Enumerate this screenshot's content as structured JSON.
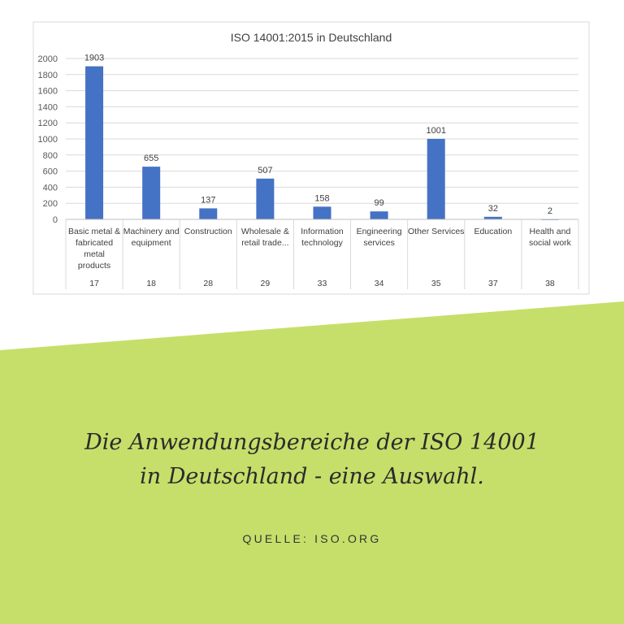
{
  "chart_data": {
    "type": "bar",
    "title": "ISO 14001:2015 in Deutschland",
    "categories": [
      [
        "Basic metal &",
        "fabricated",
        "metal",
        "products"
      ],
      [
        "Machinery and",
        "equipment"
      ],
      [
        "Construction"
      ],
      [
        "Wholesale &",
        "retail trade..."
      ],
      [
        "Information",
        "technology"
      ],
      [
        "Engineering",
        "services"
      ],
      [
        "Other Services"
      ],
      [
        "Education"
      ],
      [
        "Health and",
        "social work"
      ]
    ],
    "codes": [
      "17",
      "18",
      "28",
      "29",
      "33",
      "34",
      "35",
      "37",
      "38"
    ],
    "values": [
      1903,
      655,
      137,
      507,
      158,
      99,
      1001,
      32,
      2
    ],
    "data_labels": [
      "1903",
      "655",
      "137",
      "507",
      "158",
      "99",
      "1001",
      "32",
      "2"
    ],
    "ylim": [
      0,
      2000
    ],
    "yticks": [
      "0",
      "200",
      "400",
      "600",
      "800",
      "1000",
      "1200",
      "1400",
      "1600",
      "1800",
      "2000"
    ],
    "grid": true,
    "legend": "none",
    "bar_color": "#4472c4"
  },
  "caption": {
    "headline_lines": [
      "Die Anwendungsbereiche der ISO 14001",
      "in Deutschland - eine Auswahl."
    ],
    "source": "QUELLE: ISO.ORG"
  },
  "colors": {
    "accent_green": "#c6df6a",
    "text_dark": "#2b2b2b"
  }
}
